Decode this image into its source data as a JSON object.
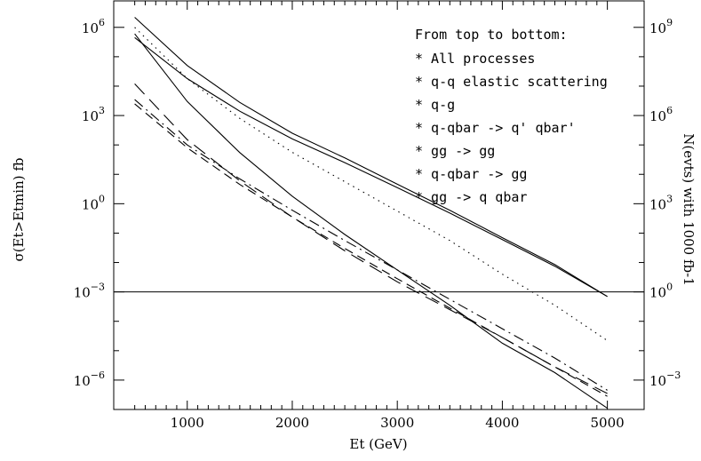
{
  "chart_data": {
    "type": "line",
    "xlabel": "Et (GeV)",
    "ylabel": "σ(Et>Etmin) fb",
    "y2label": "N(evts) with 1000 fb-1",
    "xlim": [
      300,
      5350
    ],
    "ylim_log10": [
      -7.0,
      6.9
    ],
    "y_scale": "log",
    "x_ticks": [
      "1000",
      "2000",
      "3000",
      "4000",
      "5000"
    ],
    "y_ticks": [
      {
        "base": "10",
        "exp": "6",
        "value": 1000000.0
      },
      {
        "base": "10",
        "exp": "3",
        "value": 1000.0
      },
      {
        "base": "10",
        "exp": "0",
        "value": 1
      },
      {
        "base": "10",
        "exp": "−3",
        "value": 0.001
      },
      {
        "base": "10",
        "exp": "−6",
        "value": 1e-06
      }
    ],
    "y2_ticks": [
      {
        "base": "10",
        "exp": "9"
      },
      {
        "base": "10",
        "exp": "6"
      },
      {
        "base": "10",
        "exp": "3"
      },
      {
        "base": "10",
        "exp": "0"
      },
      {
        "base": "10",
        "exp": "−3"
      }
    ],
    "grid": false,
    "legend_title": "From top to bottom:",
    "legend_items": [
      "* All processes",
      "* q-q elastic scattering",
      "* q-g",
      "* q-qbar -> q' qbar'",
      "* gg -> gg",
      "* q-qbar -> gg",
      "* gg -> q qbar"
    ],
    "reference_line": {
      "y": 0.001
    },
    "series": [
      {
        "style": "solid",
        "x": [
          500,
          1000,
          1500,
          2000,
          2500,
          3000,
          3500,
          4000,
          4500,
          5000
        ],
        "y": [
          2200000.0,
          50000.0,
          2800.0,
          250,
          36,
          4.6,
          0.6,
          0.07,
          0.0085,
          0.0007
        ]
      },
      {
        "style": "solid",
        "x": [
          500,
          1000,
          1500,
          2000,
          2500,
          3000,
          3500,
          4000,
          4500,
          5000
        ],
        "y": [
          450000.0,
          18000.0,
          1400.0,
          160,
          25,
          3.5,
          0.48,
          0.06,
          0.0075,
          0.0007
        ]
      },
      {
        "style": "dotted",
        "x": [
          500,
          1000,
          1500,
          2000,
          2500,
          3000,
          3500,
          4000,
          4500,
          5000
        ],
        "y": [
          1000000.0,
          18000.0,
          800,
          56,
          5.6,
          0.56,
          0.056,
          0.004,
          0.00035,
          2.2e-05
        ]
      },
      {
        "style": "solid",
        "x": [
          500,
          1000,
          1500,
          2000,
          2500,
          3000,
          3500,
          4000,
          4500,
          5000
        ],
        "y": [
          600000.0,
          3000.0,
          55,
          1.8,
          0.09,
          0.0056,
          0.00035,
          1.8e-05,
          1.8e-06,
          1.1e-07
        ]
      },
      {
        "style": "long-dash",
        "x": [
          500,
          1000,
          1500,
          2000,
          2500,
          3000,
          3500,
          4000,
          4500,
          5000
        ],
        "y": [
          12000.0,
          150,
          6,
          0.35,
          0.025,
          0.0022,
          0.00025,
          2.8e-05,
          2.8e-06,
          3.5e-07
        ]
      },
      {
        "style": "dash-dot",
        "x": [
          500,
          1000,
          1500,
          2000,
          2500,
          3000,
          3500,
          4000,
          4500,
          5000
        ],
        "y": [
          3500.0,
          100,
          7,
          0.6,
          0.056,
          0.0056,
          0.00056,
          5.6e-05,
          5.6e-06,
          4.5e-07
        ]
      },
      {
        "style": "short-dash",
        "x": [
          500,
          1000,
          1500,
          2000,
          2500,
          3000,
          3500,
          4000,
          4500,
          5000
        ],
        "y": [
          2500.0,
          80,
          4.5,
          0.35,
          0.03,
          0.0028,
          0.00028,
          2.8e-05,
          2.8e-06,
          2.8e-07
        ]
      }
    ]
  }
}
